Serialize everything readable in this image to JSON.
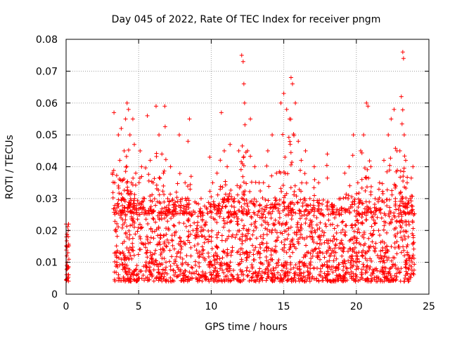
{
  "chart_data": {
    "type": "scatter",
    "title": "Day 045 of 2022, Rate Of TEC Index for receiver pngm",
    "xlabel": "GPS time / hours",
    "ylabel": "ROTI / TECUs",
    "xlim": [
      0,
      25
    ],
    "ylim": [
      0,
      0.08
    ],
    "xticks": [
      0,
      5,
      10,
      15,
      20,
      25
    ],
    "xtick_labels": [
      "0",
      "5",
      "10",
      "15",
      "20",
      "25"
    ],
    "yticks": [
      0,
      0.01,
      0.02,
      0.03,
      0.04,
      0.05,
      0.06,
      0.07,
      0.08
    ],
    "ytick_labels": [
      "0",
      "0.01",
      "0.02",
      "0.03",
      "0.04",
      "0.05",
      "0.06",
      "0.07",
      "0.08"
    ],
    "grid": true,
    "marker": "+",
    "color": "#ff0000",
    "series": [
      {
        "name": "ROTI",
        "points": [
          [
            0.0,
            0.022
          ],
          [
            0.02,
            0.018
          ],
          [
            0.03,
            0.015
          ],
          [
            0.05,
            0.012
          ],
          [
            0.07,
            0.01
          ],
          [
            0.08,
            0.008
          ],
          [
            0.1,
            0.005
          ],
          [
            0.12,
            0.013
          ],
          [
            0.15,
            0.02
          ],
          [
            0.17,
            0.022
          ],
          [
            3.3,
            0.057
          ],
          [
            3.35,
            0.035
          ],
          [
            3.4,
            0.02
          ],
          [
            3.45,
            0.012
          ],
          [
            3.5,
            0.01
          ],
          [
            3.6,
            0.05
          ],
          [
            3.7,
            0.042
          ],
          [
            3.8,
            0.052
          ],
          [
            3.9,
            0.03
          ],
          [
            4.0,
            0.045
          ],
          [
            4.1,
            0.055
          ],
          [
            4.2,
            0.06
          ],
          [
            4.3,
            0.058
          ],
          [
            4.4,
            0.05
          ],
          [
            4.5,
            0.035
          ],
          [
            4.6,
            0.055
          ],
          [
            4.7,
            0.047
          ],
          [
            4.8,
            0.038
          ],
          [
            4.9,
            0.025
          ],
          [
            5.0,
            0.005
          ],
          [
            5.1,
            0.045
          ],
          [
            5.2,
            0.04
          ],
          [
            5.4,
            0.03
          ],
          [
            5.6,
            0.056
          ],
          [
            5.8,
            0.042
          ],
          [
            6.0,
            0.035
          ],
          [
            6.2,
            0.059
          ],
          [
            6.4,
            0.05
          ],
          [
            6.6,
            0.044
          ],
          [
            6.8,
            0.059
          ],
          [
            7.0,
            0.03
          ],
          [
            7.2,
            0.04
          ],
          [
            7.4,
            0.028
          ],
          [
            7.6,
            0.032
          ],
          [
            7.8,
            0.05
          ],
          [
            8.0,
            0.03
          ],
          [
            8.2,
            0.035
          ],
          [
            8.4,
            0.048
          ],
          [
            8.5,
            0.055
          ],
          [
            8.7,
            0.025
          ],
          [
            9.0,
            0.02
          ],
          [
            9.3,
            0.03
          ],
          [
            9.6,
            0.022
          ],
          [
            9.9,
            0.043
          ],
          [
            10.1,
            0.035
          ],
          [
            10.4,
            0.038
          ],
          [
            10.7,
            0.057
          ],
          [
            10.9,
            0.045
          ],
          [
            11.1,
            0.04
          ],
          [
            11.3,
            0.047
          ],
          [
            11.6,
            0.03
          ],
          [
            11.9,
            0.045
          ],
          [
            12.1,
            0.075
          ],
          [
            12.2,
            0.073
          ],
          [
            12.25,
            0.066
          ],
          [
            12.3,
            0.06
          ],
          [
            12.5,
            0.045
          ],
          [
            12.7,
            0.055
          ],
          [
            13.0,
            0.04
          ],
          [
            13.3,
            0.035
          ],
          [
            13.6,
            0.035
          ],
          [
            13.9,
            0.045
          ],
          [
            14.2,
            0.05
          ],
          [
            14.5,
            0.038
          ],
          [
            14.8,
            0.06
          ],
          [
            15.0,
            0.063
          ],
          [
            15.2,
            0.058
          ],
          [
            15.4,
            0.055
          ],
          [
            15.5,
            0.068
          ],
          [
            15.6,
            0.066
          ],
          [
            15.8,
            0.06
          ],
          [
            16.0,
            0.048
          ],
          [
            16.2,
            0.042
          ],
          [
            16.5,
            0.045
          ],
          [
            16.8,
            0.03
          ],
          [
            17.1,
            0.04
          ],
          [
            17.4,
            0.035
          ],
          [
            17.7,
            0.025
          ],
          [
            18.0,
            0.044
          ],
          [
            18.3,
            0.028
          ],
          [
            18.6,
            0.025
          ],
          [
            18.9,
            0.03
          ],
          [
            19.2,
            0.038
          ],
          [
            19.5,
            0.04
          ],
          [
            19.8,
            0.05
          ],
          [
            20.1,
            0.035
          ],
          [
            20.3,
            0.045
          ],
          [
            20.5,
            0.05
          ],
          [
            20.7,
            0.06
          ],
          [
            20.8,
            0.059
          ],
          [
            21.0,
            0.04
          ],
          [
            21.3,
            0.03
          ],
          [
            21.6,
            0.035
          ],
          [
            21.9,
            0.042
          ],
          [
            22.2,
            0.05
          ],
          [
            22.4,
            0.055
          ],
          [
            22.6,
            0.058
          ],
          [
            22.8,
            0.045
          ],
          [
            23.0,
            0.045
          ],
          [
            23.1,
            0.062
          ],
          [
            23.2,
            0.076
          ],
          [
            23.25,
            0.074
          ],
          [
            23.3,
            0.05
          ],
          [
            23.4,
            0.042
          ],
          [
            23.5,
            0.035
          ],
          [
            23.7,
            0.03
          ],
          [
            23.9,
            0.04
          ]
        ],
        "bulk_ranges": [
          {
            "x": [
              0.0,
              0.2
            ],
            "y": [
              0.004,
              0.023
            ],
            "count": 25
          },
          {
            "x": [
              3.3,
              24.0
            ],
            "y": [
              0.004,
              0.03
            ],
            "count": 1800
          }
        ]
      }
    ]
  }
}
